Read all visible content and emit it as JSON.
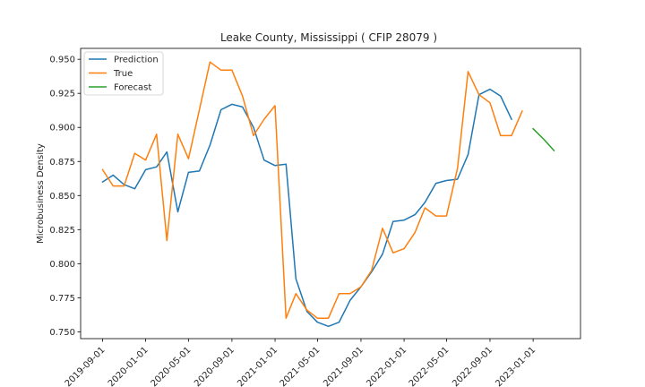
{
  "colors": {
    "prediction": "#1f77b4",
    "true": "#ff7f0e",
    "forecast": "#2ca02c",
    "axis": "#000000",
    "text": "#262626"
  },
  "chart_data": {
    "type": "line",
    "title": "Leake County, Mississippi ( CFIP 28079 )",
    "xlabel": "",
    "ylabel": "Microbusiness Density",
    "x_is_date": true,
    "xlim": [
      "2019-07-01",
      "2023-05-15"
    ],
    "ylim": [
      0.745,
      0.958
    ],
    "x_ticks": [
      "2019-09-01",
      "2020-01-01",
      "2020-05-01",
      "2020-09-01",
      "2021-01-01",
      "2021-05-01",
      "2021-09-01",
      "2022-01-01",
      "2022-05-01",
      "2022-09-01",
      "2023-01-01"
    ],
    "y_ticks": [
      0.75,
      0.775,
      0.8,
      0.825,
      0.85,
      0.875,
      0.9,
      0.925,
      0.95
    ],
    "y_tick_labels": [
      "0.750",
      "0.775",
      "0.800",
      "0.825",
      "0.850",
      "0.875",
      "0.900",
      "0.925",
      "0.950"
    ],
    "legend": {
      "placement": "top-left",
      "entries": [
        "Prediction",
        "True",
        "Forecast"
      ]
    },
    "grid": false,
    "series": [
      {
        "name": "Prediction",
        "color": "#1f77b4",
        "x": [
          "2019-09-01",
          "2019-10-01",
          "2019-11-01",
          "2019-12-01",
          "2020-01-01",
          "2020-02-01",
          "2020-03-01",
          "2020-04-01",
          "2020-05-01",
          "2020-06-01",
          "2020-07-01",
          "2020-08-01",
          "2020-09-01",
          "2020-10-01",
          "2020-11-01",
          "2020-12-01",
          "2021-01-01",
          "2021-02-01",
          "2021-03-01",
          "2021-04-01",
          "2021-05-01",
          "2021-06-01",
          "2021-07-01",
          "2021-08-01",
          "2021-09-01",
          "2021-10-01",
          "2021-11-01",
          "2021-12-01",
          "2022-01-01",
          "2022-02-01",
          "2022-03-01",
          "2022-04-01",
          "2022-05-01",
          "2022-06-01",
          "2022-07-01",
          "2022-08-01",
          "2022-09-01",
          "2022-10-01",
          "2022-11-01"
        ],
        "y": [
          0.86,
          0.865,
          0.858,
          0.855,
          0.869,
          0.871,
          0.882,
          0.838,
          0.867,
          0.868,
          0.887,
          0.913,
          0.917,
          0.915,
          0.9,
          0.876,
          0.872,
          0.873,
          0.789,
          0.765,
          0.757,
          0.754,
          0.757,
          0.773,
          0.783,
          0.794,
          0.807,
          0.831,
          0.832,
          0.836,
          0.845,
          0.859,
          0.861,
          0.862,
          0.88,
          0.924,
          0.928,
          0.923,
          0.906
        ]
      },
      {
        "name": "True",
        "color": "#ff7f0e",
        "x": [
          "2019-09-01",
          "2019-10-01",
          "2019-11-01",
          "2019-12-01",
          "2020-01-01",
          "2020-02-01",
          "2020-03-01",
          "2020-04-01",
          "2020-05-01",
          "2020-06-01",
          "2020-07-01",
          "2020-08-01",
          "2020-09-01",
          "2020-10-01",
          "2020-11-01",
          "2020-12-01",
          "2021-01-01",
          "2021-02-01",
          "2021-03-01",
          "2021-04-01",
          "2021-05-01",
          "2021-06-01",
          "2021-07-01",
          "2021-08-01",
          "2021-09-01",
          "2021-10-01",
          "2021-11-01",
          "2021-12-01",
          "2022-01-01",
          "2022-02-01",
          "2022-03-01",
          "2022-04-01",
          "2022-05-01",
          "2022-06-01",
          "2022-07-01",
          "2022-08-01",
          "2022-09-01",
          "2022-10-01",
          "2022-11-01",
          "2022-12-01"
        ],
        "y": [
          0.869,
          0.857,
          0.857,
          0.881,
          0.876,
          0.895,
          0.817,
          0.895,
          0.877,
          0.913,
          0.948,
          0.942,
          0.942,
          0.923,
          0.894,
          0.906,
          0.916,
          0.76,
          0.778,
          0.766,
          0.76,
          0.76,
          0.778,
          0.778,
          0.783,
          0.795,
          0.826,
          0.808,
          0.811,
          0.823,
          0.841,
          0.835,
          0.835,
          0.87,
          0.941,
          0.924,
          0.918,
          0.894,
          0.894,
          0.912
        ]
      },
      {
        "name": "Forecast",
        "color": "#2ca02c",
        "x": [
          "2023-01-01",
          "2023-02-01",
          "2023-03-01"
        ],
        "y": [
          0.899,
          0.891,
          0.883
        ]
      }
    ]
  }
}
